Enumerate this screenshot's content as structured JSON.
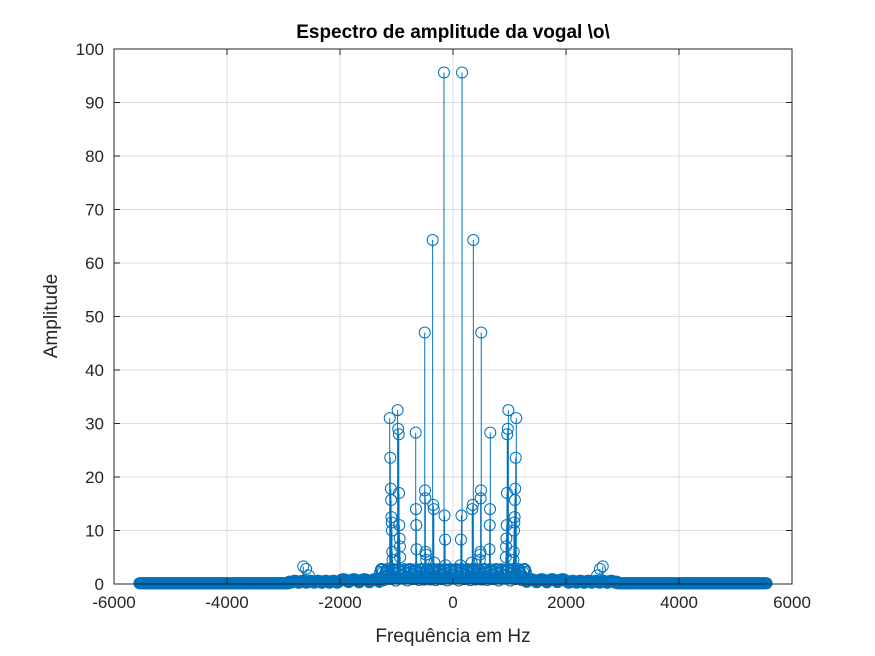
{
  "chart_data": {
    "type": "stem",
    "title": "Espectro de amplitude da vogal \\o\\",
    "xlabel": "Frequência em Hz",
    "ylabel": "Amplitude",
    "xlim": [
      -6000,
      6000
    ],
    "ylim": [
      0,
      100
    ],
    "xticks": [
      -6000,
      -4000,
      -2000,
      0,
      2000,
      4000,
      6000
    ],
    "yticks": [
      0,
      10,
      20,
      30,
      40,
      50,
      60,
      70,
      80,
      90,
      100
    ],
    "xtick_labels": [
      "-6000",
      "-4000",
      "-2000",
      "0",
      "2000",
      "4000",
      "6000"
    ],
    "ytick_labels": [
      "0",
      "10",
      "20",
      "30",
      "40",
      "50",
      "60",
      "70",
      "80",
      "90",
      "100"
    ],
    "grid": true,
    "color": "#0072BD",
    "marker": "circle-open",
    "series": [
      {
        "x": [
          -2650,
          -2600,
          -2550,
          -1120,
          -1110,
          -1100,
          -1095,
          -1090,
          -1085,
          -1080,
          -1075,
          -1070,
          -980,
          -970,
          -960,
          -955,
          -950,
          -945,
          -940,
          -935,
          -660,
          -655,
          -650,
          -645,
          -500,
          -495,
          -490,
          -485,
          -480,
          -475,
          -360,
          -350,
          -340,
          -330,
          -160,
          -150,
          -140,
          -130,
          130,
          140,
          150,
          160,
          330,
          340,
          350,
          360,
          475,
          480,
          485,
          490,
          495,
          500,
          645,
          650,
          655,
          660,
          935,
          940,
          945,
          950,
          955,
          960,
          970,
          980,
          1070,
          1075,
          1080,
          1085,
          1090,
          1095,
          1100,
          1110,
          1120,
          2550,
          2600,
          2650
        ],
        "y": [
          3.3,
          2.8,
          1.6,
          31.0,
          23.6,
          17.8,
          15.7,
          12.5,
          11.5,
          10.0,
          6.0,
          4.5,
          32.5,
          29.0,
          28.0,
          17.0,
          11.0,
          8.5,
          7.0,
          5.0,
          28.3,
          14.0,
          11.0,
          6.5,
          47.0,
          17.5,
          16.0,
          6.0,
          5.5,
          4.5,
          64.3,
          14.8,
          14.0,
          4.0,
          95.6,
          12.8,
          8.3,
          3.5,
          3.5,
          8.3,
          12.8,
          95.6,
          4.0,
          14.0,
          14.8,
          64.3,
          4.5,
          5.5,
          6.0,
          16.0,
          17.5,
          47.0,
          6.5,
          11.0,
          14.0,
          28.3,
          5.0,
          7.0,
          8.5,
          11.0,
          17.0,
          28.0,
          29.0,
          32.5,
          4.5,
          6.0,
          10.0,
          11.5,
          12.5,
          15.7,
          17.8,
          23.6,
          31.0,
          1.6,
          2.8,
          3.3
        ]
      }
    ]
  }
}
